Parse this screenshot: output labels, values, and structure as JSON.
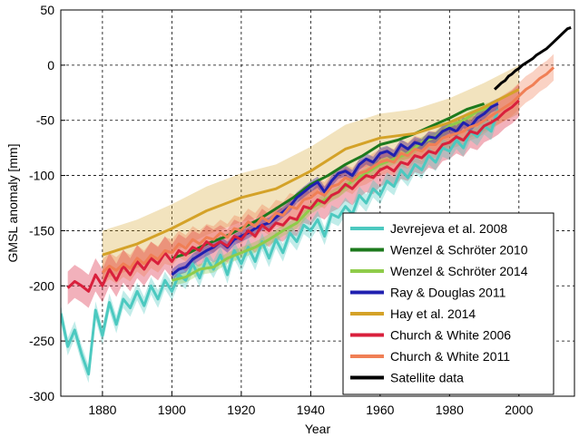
{
  "chart_data": {
    "type": "line",
    "title": "",
    "xlabel": "Year",
    "ylabel": "GMSL anomaly [mm]",
    "xlim": [
      1868,
      2016
    ],
    "ylim": [
      -300,
      50
    ],
    "xticks": [
      1880,
      1900,
      1920,
      1940,
      1960,
      1980,
      2000
    ],
    "yticks": [
      50,
      0,
      -50,
      -100,
      -150,
      -200,
      -250,
      -300
    ],
    "x_tick_labels": [
      "1880",
      "1900",
      "1920",
      "1940",
      "1960",
      "1980",
      "2000"
    ],
    "y_tick_labels": [
      "50",
      "0",
      "-50",
      "-100",
      "-150",
      "-200",
      "-250",
      "-300"
    ],
    "grid": true,
    "legend_position": "lower-right",
    "series": [
      {
        "name": "Jevrejeva et al. 2008",
        "color": "#4cc9c0",
        "band": 8,
        "x": [
          1868,
          1870,
          1872,
          1874,
          1876,
          1878,
          1880,
          1882,
          1884,
          1886,
          1888,
          1890,
          1892,
          1894,
          1896,
          1898,
          1900,
          1902,
          1904,
          1906,
          1908,
          1910,
          1912,
          1914,
          1916,
          1918,
          1920,
          1922,
          1924,
          1926,
          1928,
          1930,
          1932,
          1934,
          1936,
          1938,
          1940,
          1942,
          1944,
          1946,
          1948,
          1950,
          1952,
          1954,
          1956,
          1958,
          1960,
          1962,
          1964,
          1966,
          1968,
          1970,
          1972,
          1974,
          1976,
          1978,
          1980,
          1982,
          1984,
          1986,
          1988,
          1990,
          1992,
          1994
        ],
        "y": [
          -225,
          -255,
          -240,
          -262,
          -280,
          -222,
          -245,
          -215,
          -235,
          -212,
          -220,
          -205,
          -218,
          -200,
          -212,
          -195,
          -205,
          -190,
          -195,
          -180,
          -193,
          -175,
          -185,
          -172,
          -190,
          -168,
          -180,
          -165,
          -178,
          -160,
          -175,
          -158,
          -170,
          -152,
          -160,
          -145,
          -150,
          -140,
          -155,
          -135,
          -138,
          -128,
          -135,
          -118,
          -125,
          -112,
          -118,
          -105,
          -110,
          -95,
          -102,
          -90,
          -95,
          -82,
          -88,
          -75,
          -78,
          -68,
          -75,
          -60,
          -65,
          -55,
          -60,
          -40
        ]
      },
      {
        "name": "Wenzel & Schröter 2010",
        "color": "#1d7a1d",
        "band": 0,
        "x": [
          1900,
          1905,
          1910,
          1915,
          1920,
          1925,
          1930,
          1935,
          1940,
          1945,
          1950,
          1955,
          1960,
          1965,
          1970,
          1975,
          1980,
          1985,
          1990
        ],
        "y": [
          -175,
          -170,
          -162,
          -156,
          -148,
          -140,
          -130,
          -120,
          -108,
          -100,
          -90,
          -82,
          -72,
          -68,
          -62,
          -55,
          -48,
          -40,
          -35
        ]
      },
      {
        "name": "Wenzel & Schröter 2014",
        "color": "#8fcc4a",
        "band": 5,
        "x": [
          1900,
          1904,
          1908,
          1912,
          1916,
          1920,
          1924,
          1928,
          1932,
          1936,
          1940,
          1944,
          1948,
          1952,
          1956,
          1960,
          1964,
          1968,
          1972,
          1976,
          1980,
          1984,
          1988,
          1992
        ],
        "y": [
          -195,
          -192,
          -185,
          -183,
          -175,
          -170,
          -165,
          -158,
          -150,
          -143,
          -130,
          -122,
          -115,
          -105,
          -98,
          -90,
          -85,
          -80,
          -70,
          -65,
          -55,
          -50,
          -42,
          -38
        ]
      },
      {
        "name": "Ray & Douglas 2011",
        "color": "#2020b0",
        "band": 5,
        "x": [
          1900,
          1902,
          1904,
          1906,
          1908,
          1910,
          1912,
          1914,
          1916,
          1918,
          1920,
          1922,
          1924,
          1926,
          1928,
          1930,
          1932,
          1934,
          1936,
          1938,
          1940,
          1942,
          1944,
          1946,
          1948,
          1950,
          1952,
          1954,
          1956,
          1958,
          1960,
          1962,
          1964,
          1966,
          1968,
          1970,
          1972,
          1974,
          1976,
          1978,
          1980,
          1982,
          1984,
          1986,
          1988,
          1990,
          1992,
          1994
        ],
        "y": [
          -190,
          -185,
          -183,
          -176,
          -172,
          -168,
          -165,
          -160,
          -165,
          -158,
          -155,
          -152,
          -148,
          -145,
          -143,
          -138,
          -133,
          -128,
          -120,
          -115,
          -110,
          -106,
          -115,
          -105,
          -98,
          -96,
          -100,
          -90,
          -85,
          -88,
          -80,
          -78,
          -82,
          -72,
          -76,
          -70,
          -72,
          -65,
          -66,
          -60,
          -57,
          -60,
          -52,
          -56,
          -48,
          -44,
          -38,
          -35
        ]
      },
      {
        "name": "Hay et al. 2014",
        "color": "#d4a228",
        "band": 22,
        "x": [
          1880,
          1890,
          1900,
          1910,
          1920,
          1930,
          1940,
          1950,
          1960,
          1970,
          1980,
          1990,
          2000
        ],
        "y": [
          -172,
          -162,
          -148,
          -132,
          -120,
          -112,
          -96,
          -76,
          -66,
          -62,
          -52,
          -38,
          -22
        ]
      },
      {
        "name": "Church & White 2006",
        "color": "#d9203c",
        "band": 15,
        "x": [
          1870,
          1872,
          1874,
          1876,
          1878,
          1880,
          1882,
          1884,
          1886,
          1888,
          1890,
          1892,
          1894,
          1896,
          1898,
          1900,
          1902,
          1904,
          1906,
          1908,
          1910,
          1912,
          1914,
          1916,
          1918,
          1920,
          1922,
          1924,
          1926,
          1928,
          1930,
          1932,
          1934,
          1936,
          1938,
          1940,
          1942,
          1944,
          1946,
          1948,
          1950,
          1952,
          1954,
          1956,
          1958,
          1960,
          1962,
          1964,
          1966,
          1968,
          1970,
          1972,
          1974,
          1976,
          1978,
          1980,
          1982,
          1984,
          1986,
          1988,
          1990,
          1992,
          1994,
          1996,
          1998,
          2000
        ],
        "y": [
          -202,
          -196,
          -200,
          -205,
          -190,
          -200,
          -185,
          -195,
          -182,
          -190,
          -178,
          -185,
          -175,
          -180,
          -170,
          -178,
          -168,
          -172,
          -165,
          -168,
          -160,
          -164,
          -160,
          -164,
          -155,
          -158,
          -150,
          -155,
          -145,
          -150,
          -143,
          -145,
          -138,
          -140,
          -128,
          -130,
          -122,
          -125,
          -118,
          -115,
          -108,
          -112,
          -105,
          -100,
          -102,
          -95,
          -92,
          -96,
          -88,
          -90,
          -82,
          -84,
          -78,
          -80,
          -72,
          -70,
          -65,
          -68,
          -60,
          -62,
          -55,
          -52,
          -48,
          -42,
          -38,
          -32
        ]
      },
      {
        "name": "Church & White 2011",
        "color": "#f07f55",
        "band": 12,
        "x": [
          1880,
          1882,
          1884,
          1886,
          1888,
          1890,
          1892,
          1894,
          1896,
          1898,
          1900,
          1902,
          1904,
          1906,
          1908,
          1910,
          1912,
          1914,
          1916,
          1918,
          1920,
          1922,
          1924,
          1926,
          1928,
          1930,
          1932,
          1934,
          1936,
          1938,
          1940,
          1942,
          1944,
          1946,
          1948,
          1950,
          1952,
          1954,
          1956,
          1958,
          1960,
          1962,
          1964,
          1966,
          1968,
          1970,
          1972,
          1974,
          1976,
          1978,
          1980,
          1982,
          1984,
          1986,
          1988,
          1990,
          1992,
          1994,
          1996,
          1998,
          2000,
          2002,
          2004,
          2006,
          2008,
          2010
        ],
        "y": [
          -188,
          -182,
          -186,
          -180,
          -184,
          -175,
          -180,
          -172,
          -176,
          -168,
          -170,
          -162,
          -166,
          -158,
          -162,
          -156,
          -158,
          -152,
          -156,
          -148,
          -150,
          -142,
          -146,
          -138,
          -142,
          -134,
          -136,
          -128,
          -130,
          -122,
          -120,
          -115,
          -118,
          -110,
          -108,
          -102,
          -105,
          -98,
          -96,
          -92,
          -88,
          -86,
          -88,
          -80,
          -82,
          -76,
          -78,
          -72,
          -72,
          -66,
          -64,
          -62,
          -60,
          -56,
          -54,
          -50,
          -46,
          -42,
          -38,
          -34,
          -28,
          -22,
          -18,
          -12,
          -8,
          -2
        ]
      },
      {
        "name": "Satellite data",
        "color": "#000000",
        "band": 0,
        "x": [
          1993,
          1994,
          1995,
          1996,
          1997,
          1998,
          1999,
          2000,
          2001,
          2002,
          2003,
          2004,
          2005,
          2006,
          2007,
          2008,
          2009,
          2010,
          2011,
          2012,
          2013,
          2014,
          2015
        ],
        "y": [
          -22,
          -19,
          -16,
          -14,
          -10,
          -8,
          -5,
          -3,
          0,
          2,
          4,
          6,
          9,
          11,
          13,
          15,
          18,
          21,
          24,
          27,
          30,
          33,
          34
        ]
      }
    ]
  }
}
